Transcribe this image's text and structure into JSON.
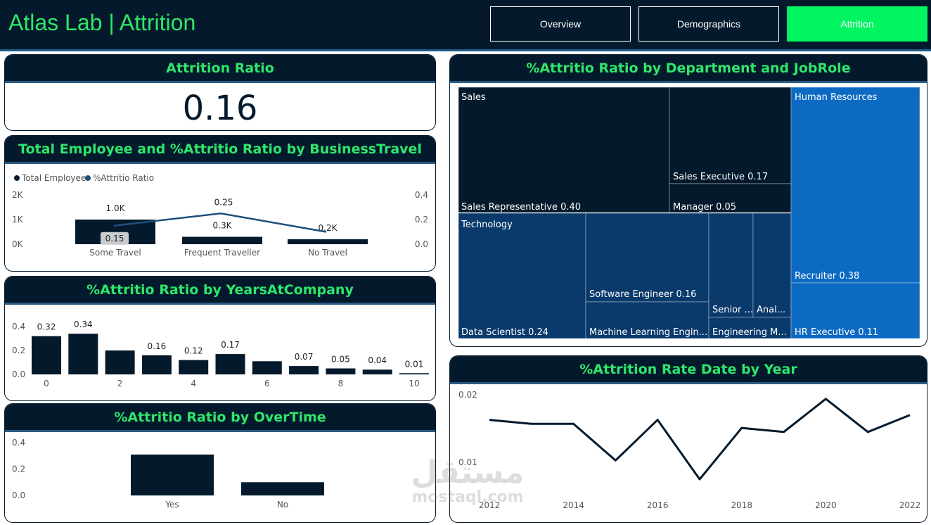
{
  "header": {
    "title": "Atlas Lab | Attrition",
    "nav": [
      {
        "label": "Overview",
        "active": false
      },
      {
        "label": "Demographics",
        "active": false
      },
      {
        "label": "Attrition",
        "active": true
      }
    ]
  },
  "kpi": {
    "title": "Attrition Ratio",
    "value": "0.16"
  },
  "treemap": {
    "title": "%Attritio Ratio by Department and JobRole",
    "departments": [
      {
        "name": "Sales",
        "color": "#041a2c",
        "roles": [
          {
            "label": "Sales Representative 0.40"
          },
          {
            "label": "Sales Executive 0.17"
          },
          {
            "label": "Manager 0.05"
          }
        ]
      },
      {
        "name": "Technology",
        "color": "#0a3a6c",
        "roles": [
          {
            "label": "Data Scientist 0.24"
          },
          {
            "label": "Software Engineer 0.16"
          },
          {
            "label": "Machine Learning Engin..."
          },
          {
            "label": "Senior ..."
          },
          {
            "label": "Anal..."
          },
          {
            "label": "Engineering M..."
          }
        ]
      },
      {
        "name": "Human Resources",
        "color": "#0d6ac2",
        "roles": [
          {
            "label": "Recruiter 0.38"
          },
          {
            "label": "HR Executive 0.11"
          }
        ]
      }
    ]
  },
  "chart_data": [
    {
      "id": "business_travel",
      "type": "bar",
      "title": "Total Employee and %Attritio Ratio by BusinessTravel",
      "categories": [
        "Some Travel",
        "Frequent Traveller",
        "No Travel"
      ],
      "series": [
        {
          "name": "Total Employee",
          "type": "bar",
          "values": [
            1000,
            300,
            200
          ],
          "labels": [
            "1.0K",
            "0.3K",
            "0.2K"
          ],
          "color": "#041a2c"
        },
        {
          "name": "%Attritio Ratio",
          "type": "line",
          "values": [
            0.15,
            0.25,
            0.1
          ],
          "labels": [
            "0.15",
            "0.25",
            ""
          ],
          "color": "#1f4e79"
        }
      ],
      "y_left_ticks": [
        "2K",
        "1K",
        "0K"
      ],
      "y_left_lim": [
        0,
        2000
      ],
      "y_right_ticks": [
        "0.4",
        "0.2",
        "0.0"
      ],
      "y_right_lim": [
        0,
        0.4
      ],
      "legend": "top-left"
    },
    {
      "id": "years_at_company",
      "type": "bar",
      "title": "%Attritio Ratio by YearsAtCompany",
      "x": [
        0,
        1,
        2,
        3,
        4,
        5,
        6,
        7,
        8,
        9,
        10
      ],
      "values": [
        0.32,
        0.34,
        0.2,
        0.16,
        0.12,
        0.17,
        0.11,
        0.07,
        0.05,
        0.04,
        0.01
      ],
      "labels": [
        "0.32",
        "0.34",
        "",
        "0.16",
        "0.12",
        "0.17",
        "",
        "0.07",
        "0.05",
        "0.04",
        "0.01"
      ],
      "x_ticks": [
        "0",
        "2",
        "4",
        "6",
        "8",
        "10"
      ],
      "y_ticks": [
        "0.4",
        "0.2",
        "0.0"
      ],
      "ylim": [
        0,
        0.4
      ],
      "color": "#041a2c"
    },
    {
      "id": "overtime",
      "type": "bar",
      "title": "%Attritio Ratio by OverTime",
      "categories": [
        "Yes",
        "No"
      ],
      "values": [
        0.31,
        0.1
      ],
      "y_ticks": [
        "0.4",
        "0.2",
        "0.0"
      ],
      "ylim": [
        0,
        0.4
      ],
      "color": "#041a2c"
    },
    {
      "id": "attrition_by_year",
      "type": "line",
      "title": "%Attrition Rate Date by Year",
      "x": [
        2012,
        2013,
        2014,
        2015,
        2016,
        2017,
        2018,
        2019,
        2020,
        2021,
        2022
      ],
      "values": [
        0.0164,
        0.0158,
        0.0158,
        0.0104,
        0.0164,
        0.0076,
        0.0152,
        0.0146,
        0.0195,
        0.0146,
        0.0171
      ],
      "x_ticks": [
        "2012",
        "2014",
        "2016",
        "2018",
        "2020",
        "2022"
      ],
      "y_ticks": [
        "0.02",
        "0.01"
      ],
      "ylim": [
        0.0075,
        0.02
      ],
      "color": "#041a2c"
    }
  ],
  "watermark": {
    "line1": "مستقل",
    "line2": "mostaql.com"
  }
}
